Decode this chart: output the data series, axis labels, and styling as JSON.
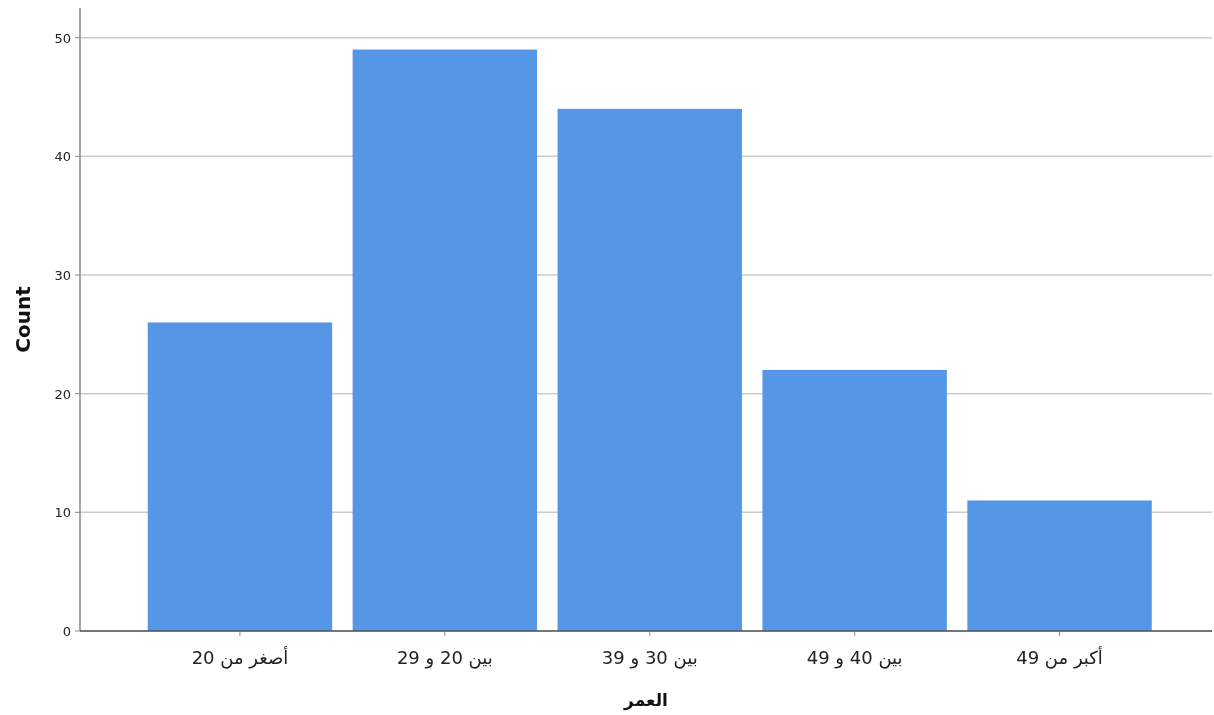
{
  "chart_data": {
    "type": "bar",
    "xlabel": "العمر",
    "ylabel": "Count",
    "categories": [
      "أصغر من 20",
      "بين 20 و 29",
      "بين 30 و 39",
      "بين 40 و 49",
      "أكبر من 49"
    ],
    "values": [
      26,
      49,
      44,
      22,
      11
    ],
    "color": "#5596e6",
    "ylim": [
      0,
      52.5
    ],
    "yticks": [
      0,
      10,
      20,
      30,
      40,
      50
    ],
    "grid": "y"
  }
}
